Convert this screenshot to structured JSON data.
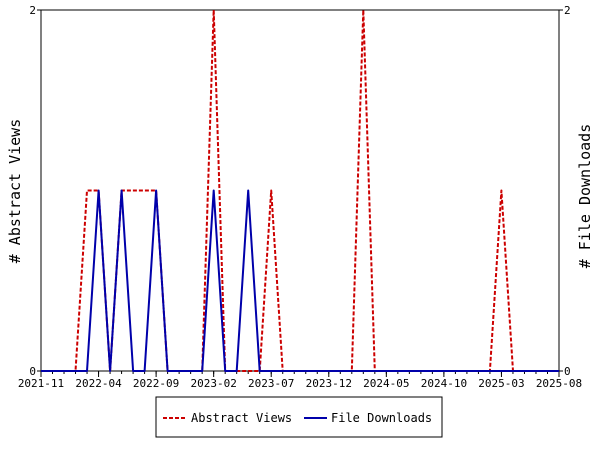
{
  "chart_data": {
    "type": "line",
    "title": "",
    "y_left_label": "# Abstract Views",
    "y_right_label": "# File Downloads",
    "y_left_range": [
      0,
      2
    ],
    "y_right_range": [
      0,
      2
    ],
    "y_left_ticks": [
      "0",
      "2"
    ],
    "y_right_ticks": [
      "0",
      "2"
    ],
    "x_range": [
      "2021-11",
      "2025-08"
    ],
    "x_ticks": [
      "2021-11",
      "2022-04",
      "2022-09",
      "2023-02",
      "2023-07",
      "2023-12",
      "2024-05",
      "2024-10",
      "2025-03",
      "2025-08"
    ],
    "grid": false,
    "legend_position": "bottom",
    "series": [
      {
        "name": "Abstract Views",
        "color": "#cc0000",
        "style": "dashed",
        "axis": "left",
        "points": [
          [
            "2021-11",
            0
          ],
          [
            "2022-02",
            0
          ],
          [
            "2022-03",
            1
          ],
          [
            "2022-04",
            1
          ],
          [
            "2022-05",
            0
          ],
          [
            "2022-06",
            1
          ],
          [
            "2022-07",
            1
          ],
          [
            "2022-08",
            1
          ],
          [
            "2022-09",
            1
          ],
          [
            "2022-10",
            0
          ],
          [
            "2022-11",
            0
          ],
          [
            "2022-12",
            0
          ],
          [
            "2023-01",
            0
          ],
          [
            "2023-02",
            2
          ],
          [
            "2023-03",
            0
          ],
          [
            "2023-04",
            0
          ],
          [
            "2023-05",
            0
          ],
          [
            "2023-06",
            0
          ],
          [
            "2023-07",
            1
          ],
          [
            "2023-08",
            0
          ],
          [
            "2023-09",
            0
          ],
          [
            "2023-10",
            0
          ],
          [
            "2023-11",
            0
          ],
          [
            "2023-12",
            0
          ],
          [
            "2024-01",
            0
          ],
          [
            "2024-02",
            0
          ],
          [
            "2024-03",
            2
          ],
          [
            "2024-04",
            0
          ],
          [
            "2024-05",
            0
          ],
          [
            "2024-06",
            0
          ],
          [
            "2024-07",
            0
          ],
          [
            "2024-08",
            0
          ],
          [
            "2024-09",
            0
          ],
          [
            "2024-10",
            0
          ],
          [
            "2024-11",
            0
          ],
          [
            "2024-12",
            0
          ],
          [
            "2025-01",
            0
          ],
          [
            "2025-02",
            0
          ],
          [
            "2025-03",
            1
          ],
          [
            "2025-04",
            0
          ],
          [
            "2025-05",
            0
          ],
          [
            "2025-06",
            0
          ],
          [
            "2025-07",
            0
          ],
          [
            "2025-08",
            0
          ]
        ]
      },
      {
        "name": "File Downloads",
        "color": "#0000aa",
        "style": "solid",
        "axis": "right",
        "points": [
          [
            "2021-11",
            0
          ],
          [
            "2022-03",
            0
          ],
          [
            "2022-04",
            1
          ],
          [
            "2022-05",
            0
          ],
          [
            "2022-06",
            1
          ],
          [
            "2022-07",
            0
          ],
          [
            "2022-08",
            0
          ],
          [
            "2022-09",
            1
          ],
          [
            "2022-10",
            0
          ],
          [
            "2022-11",
            0
          ],
          [
            "2022-12",
            0
          ],
          [
            "2023-01",
            0
          ],
          [
            "2023-02",
            1
          ],
          [
            "2023-03",
            0
          ],
          [
            "2023-04",
            0
          ],
          [
            "2023-05",
            1
          ],
          [
            "2023-06",
            0
          ],
          [
            "2023-07",
            0
          ],
          [
            "2023-08",
            0
          ],
          [
            "2023-09",
            0
          ],
          [
            "2023-10",
            0
          ],
          [
            "2023-11",
            0
          ],
          [
            "2023-12",
            0
          ],
          [
            "2024-01",
            0
          ],
          [
            "2024-02",
            0
          ],
          [
            "2024-03",
            0
          ],
          [
            "2024-04",
            0
          ],
          [
            "2024-05",
            0
          ],
          [
            "2024-06",
            0
          ],
          [
            "2024-07",
            0
          ],
          [
            "2024-08",
            0
          ],
          [
            "2024-09",
            0
          ],
          [
            "2024-10",
            0
          ],
          [
            "2024-11",
            0
          ],
          [
            "2024-12",
            0
          ],
          [
            "2025-01",
            0
          ],
          [
            "2025-02",
            0
          ],
          [
            "2025-03",
            0
          ],
          [
            "2025-04",
            0
          ],
          [
            "2025-05",
            0
          ],
          [
            "2025-06",
            0
          ],
          [
            "2025-07",
            0
          ],
          [
            "2025-08",
            0
          ]
        ]
      }
    ]
  }
}
